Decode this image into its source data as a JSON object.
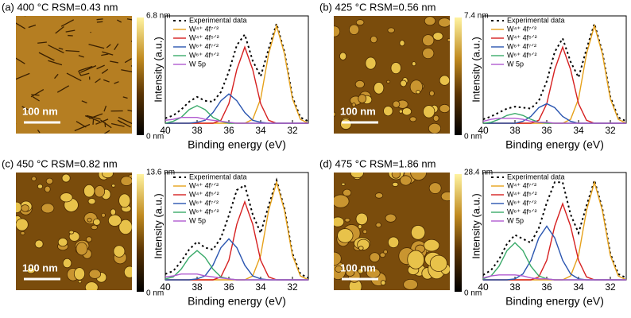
{
  "chart_data": [
    {
      "type": "line",
      "title": "(a) 400 °C  RSM=0.43 nm",
      "xlabel": "Binding energy (eV)",
      "ylabel": "Intensity (a.u.)",
      "afm": {
        "scale_bar": "100 nm",
        "colorbar_max": "6.8 nm",
        "colorbar_min": "0 nm"
      },
      "x": [
        40,
        39.5,
        39,
        38.5,
        38,
        37.5,
        37,
        36.5,
        36,
        35.5,
        35,
        34.5,
        34,
        33.5,
        33,
        32.5,
        32,
        31.5,
        31
      ],
      "xlim": [
        40,
        31
      ],
      "xticks": [
        40,
        38,
        36,
        34,
        32
      ],
      "ylim": [
        0,
        1.1
      ],
      "series": [
        {
          "name": "Experimental data",
          "color": "#000000",
          "values": [
            0.05,
            0.08,
            0.14,
            0.22,
            0.27,
            0.23,
            0.22,
            0.32,
            0.53,
            0.8,
            0.91,
            0.64,
            0.48,
            0.76,
            1.02,
            0.73,
            0.27,
            0.06,
            0.02
          ]
        },
        {
          "name": "W⁴⁺ 4f⁷ᐟ²",
          "color": "#e6a11a",
          "values": [
            0,
            0,
            0,
            0,
            0,
            0,
            0,
            0,
            0,
            0,
            0,
            0.04,
            0.25,
            0.71,
            1,
            0.71,
            0.25,
            0.04,
            0
          ]
        },
        {
          "name": "W⁴⁺ 4f⁵ᐟ²",
          "color": "#d62020",
          "values": [
            0,
            0,
            0,
            0,
            0,
            0,
            0,
            0.03,
            0.2,
            0.55,
            0.78,
            0.55,
            0.2,
            0.03,
            0,
            0,
            0,
            0,
            0
          ]
        },
        {
          "name": "W⁶⁺ 4f⁷ᐟ²",
          "color": "#2a55b0",
          "values": [
            0,
            0,
            0,
            0,
            0.01,
            0.03,
            0.11,
            0.23,
            0.3,
            0.23,
            0.11,
            0.03,
            0.01,
            0,
            0,
            0,
            0,
            0,
            0
          ]
        },
        {
          "name": "W⁶⁺ 4f⁵ᐟ²",
          "color": "#3aaa6a",
          "values": [
            0,
            0.02,
            0.06,
            0.14,
            0.18,
            0.14,
            0.06,
            0.02,
            0,
            0,
            0,
            0,
            0,
            0,
            0,
            0,
            0,
            0,
            0
          ]
        },
        {
          "name": "W 5p",
          "color": "#b05ad0",
          "values": [
            0.03,
            0.04,
            0.06,
            0.06,
            0.06,
            0.04,
            0.03,
            0.02,
            0.01,
            0,
            0,
            0,
            0,
            0,
            0,
            0,
            0,
            0,
            0
          ]
        }
      ]
    },
    {
      "type": "line",
      "title": "(b) 425 °C  RSM=0.56 nm",
      "xlabel": "Binding energy (eV)",
      "ylabel": "Intensity (a.u.)",
      "afm": {
        "scale_bar": "100 nm",
        "colorbar_max": "7.4 nm",
        "colorbar_min": "0 nm"
      },
      "x": [
        40,
        39.5,
        39,
        38.5,
        38,
        37.5,
        37,
        36.5,
        36,
        35.5,
        35,
        34.5,
        34,
        33.5,
        33,
        32.5,
        32,
        31.5,
        31
      ],
      "xlim": [
        40,
        31
      ],
      "xticks": [
        40,
        38,
        36,
        34,
        32
      ],
      "ylim": [
        0,
        1.1
      ],
      "series": [
        {
          "name": "Experimental data",
          "color": "#000000",
          "values": [
            0.04,
            0.07,
            0.11,
            0.15,
            0.17,
            0.16,
            0.15,
            0.23,
            0.43,
            0.73,
            0.87,
            0.63,
            0.47,
            0.76,
            1.02,
            0.73,
            0.27,
            0.06,
            0.02
          ]
        },
        {
          "name": "W⁴⁺ 4f⁷ᐟ²",
          "color": "#e6a11a",
          "values": [
            0,
            0,
            0,
            0,
            0,
            0,
            0,
            0,
            0,
            0,
            0,
            0.04,
            0.25,
            0.71,
            1,
            0.71,
            0.25,
            0.04,
            0
          ]
        },
        {
          "name": "W⁴⁺ 4f⁵ᐟ²",
          "color": "#d62020",
          "values": [
            0,
            0,
            0,
            0,
            0,
            0,
            0,
            0.03,
            0.2,
            0.55,
            0.78,
            0.55,
            0.2,
            0.03,
            0,
            0,
            0,
            0,
            0
          ]
        },
        {
          "name": "W⁶⁺ 4f⁷ᐟ²",
          "color": "#2a55b0",
          "values": [
            0,
            0,
            0,
            0,
            0,
            0.02,
            0.07,
            0.16,
            0.2,
            0.16,
            0.07,
            0.02,
            0,
            0,
            0,
            0,
            0,
            0,
            0
          ]
        },
        {
          "name": "W⁶⁺ 4f⁵ᐟ²",
          "color": "#3aaa6a",
          "values": [
            0,
            0.01,
            0.04,
            0.08,
            0.1,
            0.08,
            0.04,
            0.01,
            0,
            0,
            0,
            0,
            0,
            0,
            0,
            0,
            0,
            0,
            0
          ]
        },
        {
          "name": "W 5p",
          "color": "#b05ad0",
          "values": [
            0.02,
            0.04,
            0.05,
            0.05,
            0.05,
            0.04,
            0.02,
            0.01,
            0.01,
            0,
            0,
            0,
            0,
            0,
            0,
            0,
            0,
            0,
            0
          ]
        }
      ]
    },
    {
      "type": "line",
      "title": "(c) 450 °C  RSM=0.82 nm",
      "xlabel": "Binding energy (eV)",
      "ylabel": "Intensity (a.u.)",
      "afm": {
        "scale_bar": "100 nm",
        "colorbar_max": "13.6 nm",
        "colorbar_min": "0 nm"
      },
      "x": [
        40,
        39.5,
        39,
        38.5,
        38,
        37.5,
        37,
        36.5,
        36,
        35.5,
        35,
        34.5,
        34,
        33.5,
        33,
        32.5,
        32,
        31.5,
        31
      ],
      "xlim": [
        40,
        31
      ],
      "xticks": [
        40,
        38,
        36,
        34,
        32
      ],
      "ylim": [
        0,
        1.1
      ],
      "series": [
        {
          "name": "Experimental data",
          "color": "#000000",
          "values": [
            0.06,
            0.09,
            0.19,
            0.31,
            0.39,
            0.33,
            0.31,
            0.43,
            0.66,
            0.92,
            0.97,
            0.67,
            0.48,
            0.76,
            1.02,
            0.73,
            0.27,
            0.06,
            0.02
          ]
        },
        {
          "name": "W⁴⁺ 4f⁷ᐟ²",
          "color": "#e6a11a",
          "values": [
            0,
            0,
            0,
            0,
            0,
            0,
            0,
            0,
            0,
            0,
            0,
            0.04,
            0.25,
            0.71,
            1,
            0.71,
            0.25,
            0.04,
            0
          ]
        },
        {
          "name": "W⁴⁺ 4f⁵ᐟ²",
          "color": "#d62020",
          "values": [
            0,
            0,
            0,
            0,
            0,
            0,
            0,
            0.03,
            0.2,
            0.57,
            0.8,
            0.57,
            0.2,
            0.03,
            0,
            0,
            0,
            0,
            0
          ]
        },
        {
          "name": "W⁶⁺ 4f⁷ᐟ²",
          "color": "#2a55b0",
          "values": [
            0,
            0,
            0,
            0,
            0.01,
            0.04,
            0.15,
            0.33,
            0.42,
            0.33,
            0.15,
            0.04,
            0.01,
            0,
            0,
            0,
            0,
            0,
            0
          ]
        },
        {
          "name": "W⁶⁺ 4f⁵ᐟ²",
          "color": "#3aaa6a",
          "values": [
            0.01,
            0.03,
            0.11,
            0.23,
            0.3,
            0.23,
            0.11,
            0.03,
            0.01,
            0,
            0,
            0,
            0,
            0,
            0,
            0,
            0,
            0,
            0
          ]
        },
        {
          "name": "W 5p",
          "color": "#b05ad0",
          "values": [
            0.03,
            0.04,
            0.06,
            0.06,
            0.06,
            0.04,
            0.03,
            0.02,
            0.01,
            0,
            0,
            0,
            0,
            0,
            0,
            0,
            0,
            0,
            0
          ]
        }
      ]
    },
    {
      "type": "line",
      "title": "(d) 475 °C  RSM=1.86 nm",
      "xlabel": "Binding energy (eV)",
      "ylabel": "Intensity (a.u.)",
      "afm": {
        "scale_bar": "100 nm",
        "colorbar_max": "28.4 nm",
        "colorbar_min": "0 nm"
      },
      "x": [
        40,
        39.5,
        39,
        38.5,
        38,
        37.5,
        37,
        36.5,
        36,
        35.5,
        35,
        34.5,
        34,
        33.5,
        33,
        32.5,
        32,
        31.5,
        31
      ],
      "xlim": [
        40,
        31
      ],
      "xticks": [
        40,
        38,
        36,
        34,
        32
      ],
      "ylim": [
        0,
        1.1
      ],
      "series": [
        {
          "name": "Experimental data",
          "color": "#000000",
          "values": [
            0.05,
            0.1,
            0.21,
            0.37,
            0.46,
            0.42,
            0.38,
            0.53,
            0.79,
            1.0,
            1.0,
            0.67,
            0.48,
            0.76,
            1.02,
            0.73,
            0.27,
            0.06,
            0.02
          ]
        },
        {
          "name": "W⁴⁺ 4f⁷ᐟ²",
          "color": "#e6a11a",
          "values": [
            0,
            0,
            0,
            0,
            0,
            0,
            0,
            0,
            0,
            0,
            0,
            0.04,
            0.25,
            0.71,
            1,
            0.71,
            0.25,
            0.04,
            0
          ]
        },
        {
          "name": "W⁴⁺ 4f⁵ᐟ²",
          "color": "#d62020",
          "values": [
            0,
            0,
            0,
            0,
            0,
            0,
            0,
            0.03,
            0.2,
            0.55,
            0.78,
            0.55,
            0.2,
            0.03,
            0,
            0,
            0,
            0,
            0
          ]
        },
        {
          "name": "W⁶⁺ 4f⁷ᐟ²",
          "color": "#2a55b0",
          "values": [
            0,
            0,
            0,
            0,
            0.01,
            0.06,
            0.2,
            0.43,
            0.55,
            0.43,
            0.2,
            0.06,
            0.01,
            0,
            0,
            0,
            0,
            0,
            0
          ]
        },
        {
          "name": "W⁶⁺ 4f⁵ᐟ²",
          "color": "#3aaa6a",
          "values": [
            0.01,
            0.04,
            0.14,
            0.3,
            0.38,
            0.3,
            0.14,
            0.04,
            0.01,
            0,
            0,
            0,
            0,
            0,
            0,
            0,
            0,
            0,
            0
          ]
        },
        {
          "name": "W 5p",
          "color": "#b05ad0",
          "values": [
            0.02,
            0.04,
            0.05,
            0.05,
            0.05,
            0.04,
            0.02,
            0.01,
            0.01,
            0,
            0,
            0,
            0,
            0,
            0,
            0,
            0,
            0,
            0
          ]
        }
      ]
    }
  ]
}
